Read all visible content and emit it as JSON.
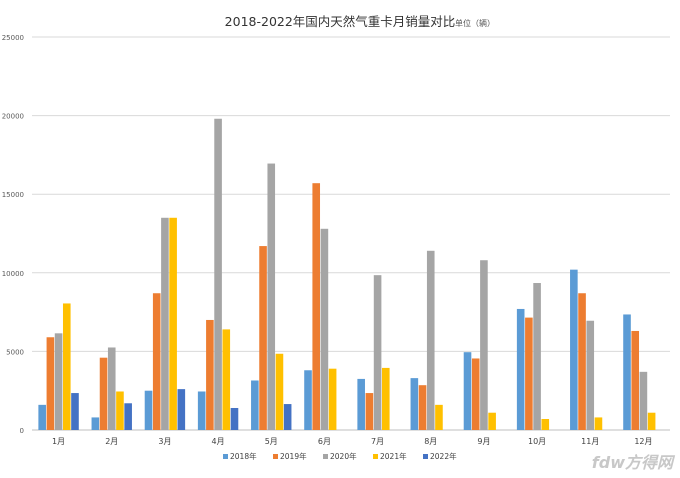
{
  "chart_data": {
    "type": "bar",
    "title": "2018-2022年国内天然气重卡月销量对比",
    "unit_note": "单位（辆）",
    "xlabel": "",
    "ylabel": "",
    "categories": [
      "1月",
      "2月",
      "3月",
      "4月",
      "5月",
      "6月",
      "7月",
      "8月",
      "9月",
      "10月",
      "11月",
      "12月"
    ],
    "ylim": [
      0,
      25000
    ],
    "yticks": [
      0,
      5000,
      10000,
      15000,
      20000,
      25000
    ],
    "grid": true,
    "legend_position": "bottom",
    "series": [
      {
        "name": "2018年",
        "color": "#5B9BD5",
        "values": [
          1600,
          800,
          2500,
          2450,
          3150,
          3800,
          3250,
          3300,
          4950,
          7700,
          10200,
          7350
        ]
      },
      {
        "name": "2019年",
        "color": "#ED7D31",
        "values": [
          5900,
          4600,
          8700,
          7000,
          11700,
          15700,
          2350,
          2850,
          4550,
          7150,
          8700,
          6300
        ]
      },
      {
        "name": "2020年",
        "color": "#A5A5A5",
        "values": [
          6150,
          5250,
          13500,
          19800,
          16950,
          12800,
          9850,
          11400,
          10800,
          9350,
          6950,
          3700
        ]
      },
      {
        "name": "2021年",
        "color": "#FFC000",
        "values": [
          8050,
          2450,
          13500,
          6400,
          4850,
          3900,
          3950,
          1600,
          1100,
          700,
          800,
          1100
        ]
      },
      {
        "name": "2022年",
        "color": "#4472C4",
        "values": [
          2350,
          1700,
          2600,
          1400,
          1650,
          null,
          null,
          null,
          null,
          null,
          null,
          null
        ]
      }
    ]
  },
  "watermark": "fdw方得网"
}
